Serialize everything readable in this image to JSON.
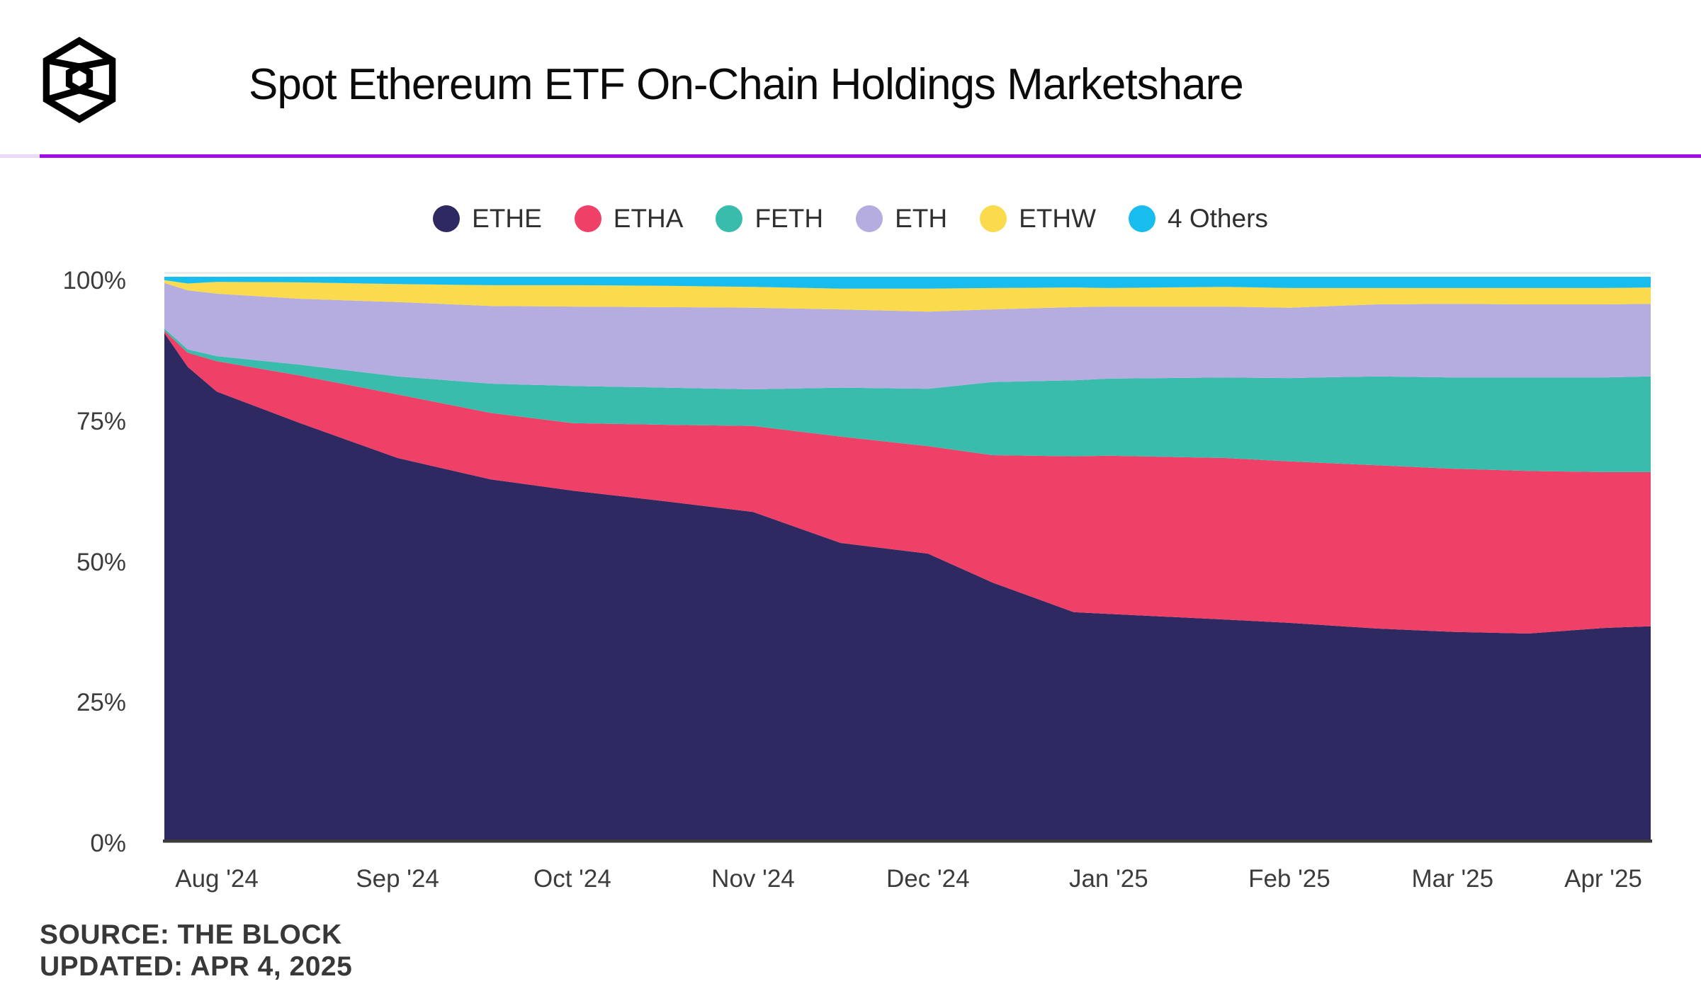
{
  "header": {
    "title": "Spot Ethereum ETF On-Chain Holdings Marketshare",
    "logo": "the-block-cube-logo"
  },
  "footer": {
    "source": "SOURCE: THE BLOCK",
    "updated": "UPDATED: APR 4, 2025"
  },
  "colors": {
    "accent_rule": "#a30be4",
    "accent_rule_tint": "#ecd9f8",
    "axis_line": "#3b3b3b",
    "top_gridline": "#ededed",
    "label_text": "#3c3c3c",
    "title_text": "#0b0b0b",
    "footer_text": "#383838"
  },
  "legend": [
    {
      "label": "ETHE",
      "color": "#2e2961"
    },
    {
      "label": "ETHA",
      "color": "#ef4067"
    },
    {
      "label": "FETH",
      "color": "#3abcad"
    },
    {
      "label": "ETH",
      "color": "#b5acdf"
    },
    {
      "label": "ETHW",
      "color": "#f9db4d"
    },
    {
      "label": "4 Others",
      "color": "#18bdee"
    }
  ],
  "chart_data": {
    "type": "area",
    "stacked": true,
    "title": "Spot Ethereum ETF On-Chain Holdings Marketshare",
    "unit": "percent of total on-chain holdings",
    "grid": "off",
    "legend_position": "top-center",
    "x_domain_days": [
      0,
      255
    ],
    "x_start_date": "Jul 23 2024",
    "x_end_date": "Apr 4 2025",
    "x_axis": {
      "tick_labels": [
        "Aug '24",
        "Sep '24",
        "Oct '24",
        "Nov '24",
        "Dec '24",
        "Jan '25",
        "Feb '25",
        "Mar '25",
        "Apr '25"
      ],
      "tick_days": [
        9,
        40,
        70,
        101,
        131,
        162,
        193,
        221,
        252
      ]
    },
    "y_axis": {
      "tick_labels": [
        "0%",
        "25%",
        "50%",
        "75%",
        "100%"
      ],
      "tick_values": [
        0,
        25,
        50,
        75,
        100
      ],
      "range": [
        0,
        100
      ]
    },
    "x_days": [
      0,
      4,
      9,
      23,
      40,
      56,
      70,
      86,
      101,
      116,
      131,
      142,
      156,
      162,
      182,
      193,
      208,
      221,
      234,
      247,
      255
    ],
    "x_dates": [
      "Jul 23",
      "Jul 27",
      "Aug 1",
      "Aug 15",
      "Sep 1",
      "Sep 17",
      "Oct 1",
      "Oct 17",
      "Nov 1",
      "Nov 16",
      "Dec 1",
      "Dec 12",
      "Dec 26",
      "Jan 1",
      "Jan 21",
      "Feb 1",
      "Feb 16",
      "Mar 1",
      "Mar 14",
      "Mar 27",
      "Apr 4"
    ],
    "series": [
      {
        "name": "ETHE",
        "color": "#2e2961",
        "values": [
          90.0,
          84.0,
          79.6,
          74.1,
          67.8,
          64.0,
          62.0,
          60.1,
          58.2,
          52.7,
          50.8,
          45.7,
          40.4,
          40.1,
          39.1,
          38.5,
          37.5,
          36.9,
          36.6,
          37.6,
          37.9
        ]
      },
      {
        "name": "ETHA",
        "color": "#ef4067",
        "values": [
          0.4,
          2.5,
          5.4,
          8.4,
          11.3,
          11.8,
          12.0,
          13.6,
          15.3,
          18.9,
          19.1,
          22.6,
          27.7,
          28.1,
          28.7,
          28.7,
          29.0,
          29.0,
          28.9,
          27.7,
          27.4
        ]
      },
      {
        "name": "FETH",
        "color": "#3abcad",
        "values": [
          0.4,
          0.6,
          0.9,
          1.9,
          3.2,
          5.2,
          6.6,
          6.6,
          6.5,
          8.7,
          10.2,
          13.0,
          13.5,
          13.7,
          14.3,
          14.8,
          15.8,
          16.2,
          16.6,
          16.8,
          17.0
        ]
      },
      {
        "name": "ETH",
        "color": "#b5acdf",
        "values": [
          8.1,
          10.5,
          11.1,
          11.7,
          13.2,
          13.8,
          14.1,
          14.3,
          14.5,
          13.9,
          13.7,
          12.9,
          13.0,
          12.8,
          12.6,
          12.5,
          12.8,
          13.1,
          13.0,
          13.0,
          12.9
        ]
      },
      {
        "name": "ETHW",
        "color": "#f9db4d",
        "values": [
          0.5,
          1.2,
          2.1,
          2.9,
          3.2,
          3.7,
          3.8,
          3.8,
          3.7,
          3.7,
          4.1,
          3.8,
          3.5,
          3.3,
          3.5,
          3.5,
          2.9,
          2.8,
          2.9,
          2.9,
          2.9
        ]
      },
      {
        "name": "4 Others",
        "color": "#18bdee",
        "values": [
          0.6,
          1.2,
          0.9,
          1.0,
          1.3,
          1.5,
          1.5,
          1.6,
          1.8,
          2.1,
          2.1,
          2.0,
          1.9,
          2.0,
          1.8,
          2.0,
          2.0,
          2.0,
          2.0,
          2.0,
          1.9
        ]
      }
    ]
  }
}
